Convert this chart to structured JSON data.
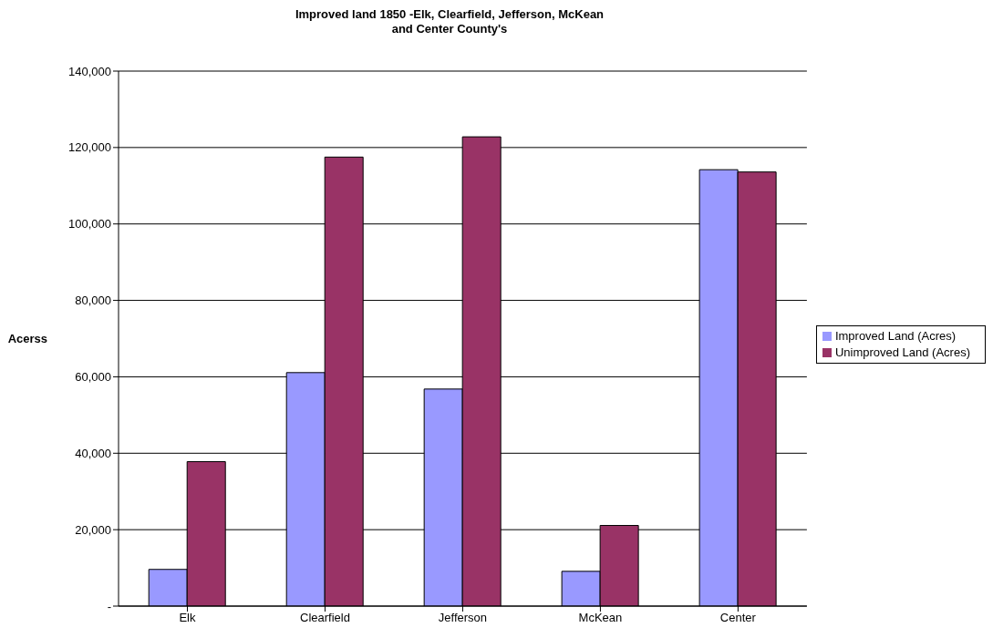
{
  "chart_data": {
    "type": "bar",
    "title": "Improved land 1850 -Elk, Clearfield, Jefferson, McKean\nand Center County's",
    "ylabel": "Acerss",
    "categories": [
      "Elk",
      "Clearfield",
      "Jefferson",
      "McKean",
      "Center"
    ],
    "series": [
      {
        "name": "Improved Land (Acres)",
        "color": "#9999ff",
        "values": [
          9600,
          61100,
          56800,
          9100,
          114200
        ]
      },
      {
        "name": "Unimproved Land (Acres)",
        "color": "#993366",
        "values": [
          37800,
          117500,
          122800,
          21100,
          113600
        ]
      }
    ],
    "ylim": [
      0,
      140000
    ],
    "yticks": [
      {
        "value": 0,
        "label": "-"
      },
      {
        "value": 20000,
        "label": "20,000"
      },
      {
        "value": 40000,
        "label": "40,000"
      },
      {
        "value": 60000,
        "label": "60,000"
      },
      {
        "value": 80000,
        "label": "80,000"
      },
      {
        "value": 100000,
        "label": "100,000"
      },
      {
        "value": 120000,
        "label": "120,000"
      },
      {
        "value": 140000,
        "label": "140,000"
      }
    ],
    "grid": "y",
    "legend": "right"
  }
}
